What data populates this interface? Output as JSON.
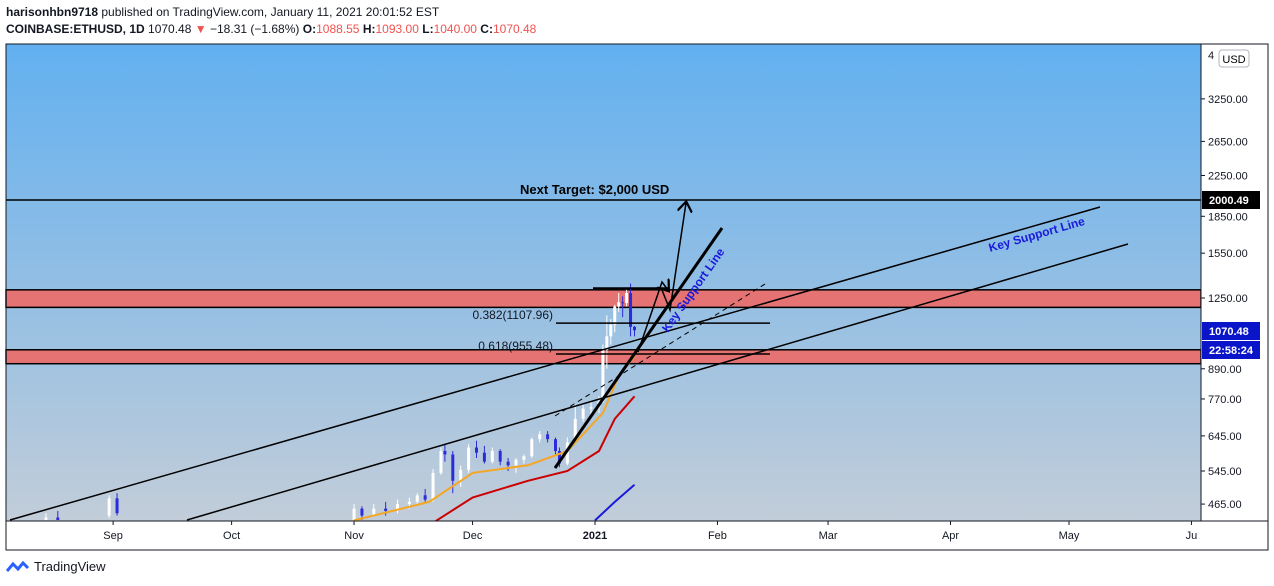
{
  "header": {
    "user": "harisonhbn9718",
    "published": "published on TradingView.com, January 11, 2021 20:01:52 EST",
    "symbol": "COINBASE:ETHUSD, 1D",
    "last": "1070.48",
    "arrow": "▼",
    "change": "−18.31 (−1.68%)",
    "o_label": "O:",
    "o": "1088.55",
    "h_label": "H:",
    "h": "1093.00",
    "l_label": "L:",
    "l": "1040.00",
    "c_label": "C:",
    "c": "1070.48"
  },
  "footer": {
    "brand": "TradingView"
  },
  "colors": {
    "bg_top": "#62b0f0",
    "bg_bottom": "#c2cdd9",
    "zone": "#e57373",
    "ema_fast": "#f5a623",
    "ema_slow": "#cc0000",
    "ema_long": "#1a1adb",
    "candle_up": "#ffffff",
    "candle_down": "#2b2bd9",
    "price_tag": "#0a15c9"
  },
  "chart_data": {
    "type": "candlestick",
    "currency_badge": "USD",
    "y_scale": "log",
    "y_ticks": [
      "3250.00",
      "2650.00",
      "2250.00",
      "1850.00",
      "1550.00",
      "1250.00",
      "890.00",
      "770.00",
      "645.00",
      "545.00",
      "465.00"
    ],
    "y_top_partial": "4",
    "x_ticks": [
      "Sep",
      "Oct",
      "Nov",
      "Dec",
      "2021",
      "Feb",
      "Mar",
      "Apr",
      "May",
      "Ju"
    ],
    "price_labels": {
      "target": "2000.49",
      "last": "1070.48",
      "countdown": "22:58:24"
    },
    "annotations": {
      "target": "Next Target: $2,000 USD",
      "fib382": "0.382(1107.96)",
      "fib618": "0.618(955.48)",
      "support_steep": "Key Support Line",
      "support_channel": "Key Support Line"
    },
    "zones": [
      {
        "low": 1195,
        "high": 1300
      },
      {
        "low": 912,
        "high": 975
      }
    ],
    "target_level": 2000.49,
    "candles": [
      {
        "d": "2020-08-15",
        "o": 430,
        "h": 445,
        "l": 418,
        "c": 436
      },
      {
        "d": "2020-08-18",
        "o": 436,
        "h": 450,
        "l": 425,
        "c": 428
      },
      {
        "d": "2020-08-31",
        "o": 440,
        "h": 485,
        "l": 435,
        "c": 478
      },
      {
        "d": "2020-09-02",
        "o": 478,
        "h": 490,
        "l": 440,
        "c": 445
      },
      {
        "d": "2020-11-01",
        "o": 395,
        "h": 465,
        "l": 390,
        "c": 455
      },
      {
        "d": "2020-11-03",
        "o": 455,
        "h": 460,
        "l": 430,
        "c": 440
      },
      {
        "d": "2020-11-06",
        "o": 440,
        "h": 465,
        "l": 438,
        "c": 455
      },
      {
        "d": "2020-11-09",
        "o": 455,
        "h": 470,
        "l": 440,
        "c": 450
      },
      {
        "d": "2020-11-12",
        "o": 450,
        "h": 475,
        "l": 445,
        "c": 465
      },
      {
        "d": "2020-11-15",
        "o": 465,
        "h": 480,
        "l": 455,
        "c": 470
      },
      {
        "d": "2020-11-17",
        "o": 470,
        "h": 490,
        "l": 462,
        "c": 485
      },
      {
        "d": "2020-11-19",
        "o": 485,
        "h": 500,
        "l": 470,
        "c": 475
      },
      {
        "d": "2020-11-21",
        "o": 475,
        "h": 550,
        "l": 470,
        "c": 540
      },
      {
        "d": "2020-11-23",
        "o": 540,
        "h": 610,
        "l": 535,
        "c": 600
      },
      {
        "d": "2020-11-24",
        "o": 600,
        "h": 620,
        "l": 570,
        "c": 590
      },
      {
        "d": "2020-11-26",
        "o": 590,
        "h": 600,
        "l": 490,
        "c": 520
      },
      {
        "d": "2020-11-28",
        "o": 520,
        "h": 560,
        "l": 505,
        "c": 548
      },
      {
        "d": "2020-11-30",
        "o": 548,
        "h": 620,
        "l": 540,
        "c": 610
      },
      {
        "d": "2020-12-02",
        "o": 610,
        "h": 630,
        "l": 580,
        "c": 595
      },
      {
        "d": "2020-12-04",
        "o": 595,
        "h": 615,
        "l": 565,
        "c": 570
      },
      {
        "d": "2020-12-06",
        "o": 570,
        "h": 610,
        "l": 565,
        "c": 600
      },
      {
        "d": "2020-12-08",
        "o": 600,
        "h": 605,
        "l": 560,
        "c": 570
      },
      {
        "d": "2020-12-10",
        "o": 570,
        "h": 580,
        "l": 545,
        "c": 560
      },
      {
        "d": "2020-12-12",
        "o": 560,
        "h": 580,
        "l": 540,
        "c": 575
      },
      {
        "d": "2020-12-14",
        "o": 575,
        "h": 590,
        "l": 565,
        "c": 585
      },
      {
        "d": "2020-12-16",
        "o": 585,
        "h": 640,
        "l": 580,
        "c": 635
      },
      {
        "d": "2020-12-18",
        "o": 635,
        "h": 660,
        "l": 625,
        "c": 650
      },
      {
        "d": "2020-12-20",
        "o": 650,
        "h": 660,
        "l": 625,
        "c": 635
      },
      {
        "d": "2020-12-22",
        "o": 635,
        "h": 640,
        "l": 590,
        "c": 600
      },
      {
        "d": "2020-12-23",
        "o": 600,
        "h": 610,
        "l": 555,
        "c": 565
      },
      {
        "d": "2020-12-25",
        "o": 565,
        "h": 640,
        "l": 560,
        "c": 625
      },
      {
        "d": "2020-12-27",
        "o": 625,
        "h": 750,
        "l": 620,
        "c": 700
      },
      {
        "d": "2020-12-29",
        "o": 700,
        "h": 750,
        "l": 690,
        "c": 735
      },
      {
        "d": "2020-12-31",
        "o": 735,
        "h": 760,
        "l": 715,
        "c": 740
      },
      {
        "d": "2021-01-02",
        "o": 740,
        "h": 780,
        "l": 720,
        "c": 760
      },
      {
        "d": "2021-01-03",
        "o": 760,
        "h": 1000,
        "l": 755,
        "c": 975
      },
      {
        "d": "2021-01-04",
        "o": 975,
        "h": 1150,
        "l": 890,
        "c": 1040
      },
      {
        "d": "2021-01-05",
        "o": 1040,
        "h": 1130,
        "l": 1000,
        "c": 1100
      },
      {
        "d": "2021-01-06",
        "o": 1100,
        "h": 1210,
        "l": 1060,
        "c": 1200
      },
      {
        "d": "2021-01-07",
        "o": 1200,
        "h": 1280,
        "l": 1170,
        "c": 1225
      },
      {
        "d": "2021-01-08",
        "o": 1225,
        "h": 1260,
        "l": 1140,
        "c": 1220
      },
      {
        "d": "2021-01-09",
        "o": 1220,
        "h": 1300,
        "l": 1200,
        "c": 1280
      },
      {
        "d": "2021-01-10",
        "o": 1280,
        "h": 1340,
        "l": 1040,
        "c": 1088
      },
      {
        "d": "2021-01-11",
        "o": 1088.55,
        "h": 1093,
        "l": 1040,
        "c": 1070.48
      }
    ],
    "ema_fast": [
      {
        "d": "2020-11-01",
        "v": 430
      },
      {
        "d": "2020-11-20",
        "v": 470
      },
      {
        "d": "2020-12-01",
        "v": 540
      },
      {
        "d": "2020-12-15",
        "v": 560
      },
      {
        "d": "2020-12-25",
        "v": 600
      },
      {
        "d": "2021-01-03",
        "v": 720
      },
      {
        "d": "2021-01-07",
        "v": 860
      },
      {
        "d": "2021-01-11",
        "v": 945
      }
    ],
    "ema_slow": [
      {
        "d": "2020-11-20",
        "v": 420
      },
      {
        "d": "2020-12-01",
        "v": 480
      },
      {
        "d": "2020-12-15",
        "v": 520
      },
      {
        "d": "2020-12-25",
        "v": 545
      },
      {
        "d": "2021-01-02",
        "v": 600
      },
      {
        "d": "2021-01-06",
        "v": 700
      },
      {
        "d": "2021-01-11",
        "v": 780
      }
    ],
    "ema_long": [
      {
        "d": "2021-01-01",
        "v": 430
      },
      {
        "d": "2021-01-06",
        "v": 470
      },
      {
        "d": "2021-01-11",
        "v": 510
      }
    ]
  }
}
